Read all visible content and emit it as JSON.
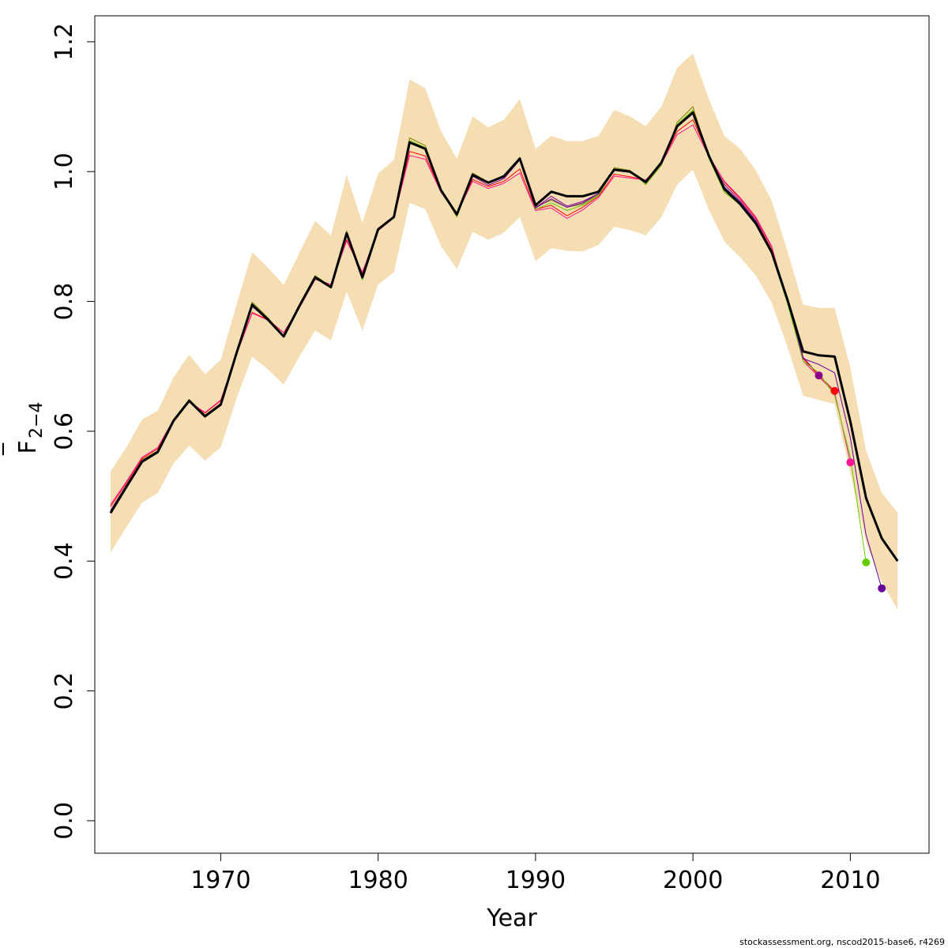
{
  "chart_data": {
    "type": "line",
    "xlabel": "Year",
    "ylabel_main": "F",
    "ylabel_sub": "2−4",
    "footer": "stockassessment.org, nscod2015-base6, r4269",
    "xlim": [
      1962,
      2015
    ],
    "ylim": [
      -0.05,
      1.24
    ],
    "x_ticks": [
      1970,
      1980,
      1990,
      2000,
      2010
    ],
    "x_tick_labels": [
      "1970",
      "1980",
      "1990",
      "2000",
      "2010"
    ],
    "y_ticks": [
      0.0,
      0.2,
      0.4,
      0.6,
      0.8,
      1.0,
      1.2
    ],
    "y_tick_labels": [
      "0.0",
      "0.2",
      "0.4",
      "0.6",
      "0.8",
      "1.0",
      "1.2"
    ],
    "band_color": "#f5deb3",
    "x": [
      1963,
      1964,
      1965,
      1966,
      1967,
      1968,
      1969,
      1970,
      1971,
      1972,
      1973,
      1974,
      1975,
      1976,
      1977,
      1978,
      1979,
      1980,
      1981,
      1982,
      1983,
      1984,
      1985,
      1986,
      1987,
      1988,
      1989,
      1990,
      1991,
      1992,
      1993,
      1994,
      1995,
      1996,
      1997,
      1998,
      1999,
      2000,
      2001,
      2002,
      2003,
      2004,
      2005,
      2006,
      2007,
      2008,
      2009,
      2010,
      2011,
      2012,
      2013
    ],
    "band_upper": [
      0.538,
      0.575,
      0.618,
      0.632,
      0.683,
      0.718,
      0.688,
      0.71,
      0.795,
      0.876,
      0.852,
      0.825,
      0.875,
      0.924,
      0.902,
      0.995,
      0.921,
      0.997,
      1.018,
      1.142,
      1.128,
      1.062,
      1.02,
      1.085,
      1.068,
      1.08,
      1.112,
      1.035,
      1.055,
      1.047,
      1.047,
      1.055,
      1.095,
      1.085,
      1.07,
      1.1,
      1.16,
      1.182,
      1.112,
      1.055,
      1.035,
      1.002,
      0.955,
      0.878,
      0.795,
      0.79,
      0.79,
      0.698,
      0.57,
      0.505,
      0.475
    ],
    "band_lower": [
      0.413,
      0.452,
      0.49,
      0.505,
      0.55,
      0.578,
      0.555,
      0.575,
      0.65,
      0.715,
      0.695,
      0.672,
      0.715,
      0.755,
      0.74,
      0.815,
      0.755,
      0.826,
      0.845,
      0.952,
      0.942,
      0.885,
      0.85,
      0.907,
      0.895,
      0.906,
      0.93,
      0.862,
      0.882,
      0.878,
      0.877,
      0.887,
      0.915,
      0.91,
      0.902,
      0.93,
      0.98,
      1.003,
      0.942,
      0.892,
      0.868,
      0.84,
      0.798,
      0.73,
      0.655,
      0.648,
      0.642,
      0.535,
      0.428,
      0.368,
      0.325
    ],
    "series": [
      {
        "color": "#000000",
        "width": 3,
        "endpoint": false,
        "x": [
          1963,
          1964,
          1965,
          1966,
          1967,
          1968,
          1969,
          1970,
          1971,
          1972,
          1973,
          1974,
          1975,
          1976,
          1977,
          1978,
          1979,
          1980,
          1981,
          1982,
          1983,
          1984,
          1985,
          1986,
          1987,
          1988,
          1989,
          1990,
          1991,
          1992,
          1993,
          1994,
          1995,
          1996,
          1997,
          1998,
          1999,
          2000,
          2001,
          2002,
          2003,
          2004,
          2005,
          2006,
          2007,
          2008,
          2009,
          2010,
          2011,
          2012,
          2013
        ],
        "y": [
          0.474,
          0.514,
          0.553,
          0.568,
          0.616,
          0.647,
          0.623,
          0.641,
          0.72,
          0.795,
          0.772,
          0.746,
          0.793,
          0.837,
          0.822,
          0.905,
          0.837,
          0.911,
          0.93,
          1.045,
          1.035,
          0.971,
          0.934,
          0.995,
          0.983,
          0.993,
          1.02,
          0.948,
          0.969,
          0.962,
          0.962,
          0.969,
          1.003,
          1.0,
          0.984,
          1.014,
          1.07,
          1.091,
          1.025,
          0.973,
          0.95,
          0.92,
          0.876,
          0.803,
          0.723,
          0.717,
          0.715,
          0.615,
          0.497,
          0.435,
          0.4
        ]
      },
      {
        "color": "#808000",
        "width": 1,
        "endpoint": false,
        "x": [
          1963,
          1964,
          1965,
          1966,
          1967,
          1968,
          1969,
          1970,
          1971,
          1972,
          1973,
          1974,
          1975,
          1976,
          1977,
          1978,
          1979,
          1980,
          1981,
          1982,
          1983,
          1984,
          1985,
          1986,
          1987,
          1988,
          1989,
          1990,
          1991,
          1992,
          1993,
          1994,
          1995,
          1996,
          1997,
          1998,
          1999,
          2000,
          2001,
          2002,
          2003,
          2004,
          2005,
          2006,
          2007
        ],
        "y": [
          0.476,
          0.516,
          0.556,
          0.57,
          0.618,
          0.649,
          0.625,
          0.643,
          0.722,
          0.799,
          0.775,
          0.747,
          0.795,
          0.84,
          0.823,
          0.909,
          0.834,
          0.912,
          0.931,
          1.052,
          1.04,
          0.972,
          0.93,
          0.998,
          0.984,
          0.994,
          1.022,
          0.946,
          0.956,
          0.945,
          0.95,
          0.965,
          1.006,
          1.002,
          0.98,
          1.01,
          1.076,
          1.1,
          1.022,
          0.968,
          0.951,
          0.921,
          0.874,
          0.8,
          0.72
        ]
      },
      {
        "color": "#8b008b",
        "width": 1,
        "endpoint": true,
        "x": [
          1963,
          1964,
          1965,
          1966,
          1967,
          1968,
          1969,
          1970,
          1971,
          1972,
          1973,
          1974,
          1975,
          1976,
          1977,
          1978,
          1979,
          1980,
          1981,
          1982,
          1983,
          1984,
          1985,
          1986,
          1987,
          1988,
          1989,
          1990,
          1991,
          1992,
          1993,
          1994,
          1995,
          1996,
          1997,
          1998,
          1999,
          2000,
          2001,
          2002,
          2003,
          2004,
          2005,
          2006,
          2007,
          2008
        ],
        "y": [
          0.478,
          0.517,
          0.555,
          0.569,
          0.617,
          0.647,
          0.624,
          0.643,
          0.72,
          0.792,
          0.772,
          0.748,
          0.793,
          0.836,
          0.823,
          0.904,
          0.837,
          0.911,
          0.93,
          1.046,
          1.035,
          0.97,
          0.935,
          0.993,
          0.979,
          0.989,
          1.018,
          0.944,
          0.962,
          0.947,
          0.954,
          0.966,
          1.002,
          0.999,
          0.985,
          1.014,
          1.069,
          1.09,
          1.023,
          0.98,
          0.955,
          0.925,
          0.879,
          0.8,
          0.714,
          0.686
        ]
      },
      {
        "color": "#ff0000",
        "width": 1,
        "endpoint": true,
        "x": [
          1963,
          1964,
          1965,
          1966,
          1967,
          1968,
          1969,
          1970,
          1971,
          1972,
          1973,
          1974,
          1975,
          1976,
          1977,
          1978,
          1979,
          1980,
          1981,
          1982,
          1983,
          1984,
          1985,
          1986,
          1987,
          1988,
          1989,
          1990,
          1991,
          1992,
          1993,
          1994,
          1995,
          1996,
          1997,
          1998,
          1999,
          2000,
          2001,
          2002,
          2003,
          2004,
          2005,
          2006,
          2007,
          2008,
          2009
        ],
        "y": [
          0.484,
          0.52,
          0.558,
          0.573,
          0.617,
          0.645,
          0.628,
          0.647,
          0.718,
          0.783,
          0.772,
          0.752,
          0.791,
          0.835,
          0.826,
          0.895,
          0.844,
          0.91,
          0.93,
          1.031,
          1.024,
          0.97,
          0.935,
          0.988,
          0.977,
          0.985,
          1.004,
          0.942,
          0.948,
          0.932,
          0.945,
          0.962,
          0.996,
          0.992,
          0.987,
          1.013,
          1.062,
          1.08,
          1.025,
          0.984,
          0.958,
          0.928,
          0.883,
          0.8,
          0.712,
          0.686,
          0.662
        ]
      },
      {
        "color": "#ff1493",
        "width": 1,
        "endpoint": true,
        "x": [
          1963,
          1964,
          1965,
          1966,
          1967,
          1968,
          1969,
          1970,
          1971,
          1972,
          1973,
          1974,
          1975,
          1976,
          1977,
          1978,
          1979,
          1980,
          1981,
          1982,
          1983,
          1984,
          1985,
          1986,
          1987,
          1988,
          1989,
          1990,
          1991,
          1992,
          1993,
          1994,
          1995,
          1996,
          1997,
          1998,
          1999,
          2000,
          2001,
          2002,
          2003,
          2004,
          2005,
          2006,
          2007,
          2008,
          2009,
          2010
        ],
        "y": [
          0.487,
          0.522,
          0.56,
          0.575,
          0.618,
          0.646,
          0.629,
          0.648,
          0.718,
          0.782,
          0.771,
          0.752,
          0.79,
          0.834,
          0.826,
          0.893,
          0.845,
          0.909,
          0.929,
          1.025,
          1.019,
          0.968,
          0.935,
          0.985,
          0.974,
          0.982,
          0.998,
          0.94,
          0.944,
          0.928,
          0.941,
          0.96,
          0.993,
          0.99,
          0.987,
          1.012,
          1.057,
          1.072,
          1.024,
          0.985,
          0.96,
          0.93,
          0.885,
          0.8,
          0.708,
          0.684,
          0.66,
          0.552
        ]
      },
      {
        "color": "#66cc00",
        "width": 1,
        "endpoint": true,
        "x": [
          1963,
          1964,
          1965,
          1966,
          1967,
          1968,
          1969,
          1970,
          1971,
          1972,
          1973,
          1974,
          1975,
          1976,
          1977,
          1978,
          1979,
          1980,
          1981,
          1982,
          1983,
          1984,
          1985,
          1986,
          1987,
          1988,
          1989,
          1990,
          1991,
          1992,
          1993,
          1994,
          1995,
          1996,
          1997,
          1998,
          1999,
          2000,
          2001,
          2002,
          2003,
          2004,
          2005,
          2006,
          2007,
          2008,
          2009,
          2010,
          2011
        ],
        "y": [
          0.475,
          0.515,
          0.554,
          0.569,
          0.617,
          0.648,
          0.624,
          0.642,
          0.721,
          0.797,
          0.773,
          0.745,
          0.794,
          0.838,
          0.822,
          0.907,
          0.833,
          0.911,
          0.93,
          1.048,
          1.037,
          0.971,
          0.931,
          0.996,
          0.982,
          0.992,
          1.02,
          0.942,
          0.952,
          0.94,
          0.948,
          0.963,
          1.004,
          1.001,
          0.981,
          1.011,
          1.073,
          1.095,
          1.021,
          0.968,
          0.949,
          0.92,
          0.873,
          0.797,
          0.708,
          0.69,
          0.655,
          0.56,
          0.398
        ]
      },
      {
        "color": "#660099",
        "width": 1,
        "endpoint": true,
        "x": [
          1963,
          1964,
          1965,
          1966,
          1967,
          1968,
          1969,
          1970,
          1971,
          1972,
          1973,
          1974,
          1975,
          1976,
          1977,
          1978,
          1979,
          1980,
          1981,
          1982,
          1983,
          1984,
          1985,
          1986,
          1987,
          1988,
          1989,
          1990,
          1991,
          1992,
          1993,
          1994,
          1995,
          1996,
          1997,
          1998,
          1999,
          2000,
          2001,
          2002,
          2003,
          2004,
          2005,
          2006,
          2007,
          2008,
          2009,
          2010,
          2011,
          2012
        ],
        "y": [
          0.475,
          0.515,
          0.554,
          0.569,
          0.617,
          0.647,
          0.624,
          0.642,
          0.721,
          0.794,
          0.772,
          0.746,
          0.793,
          0.837,
          0.822,
          0.905,
          0.836,
          0.911,
          0.93,
          1.045,
          1.035,
          0.971,
          0.934,
          0.994,
          0.982,
          0.991,
          1.018,
          0.944,
          0.958,
          0.945,
          0.952,
          0.966,
          1.003,
          1.0,
          0.984,
          1.013,
          1.069,
          1.089,
          1.024,
          0.976,
          0.953,
          0.923,
          0.877,
          0.803,
          0.712,
          0.703,
          0.69,
          0.59,
          0.44,
          0.358
        ]
      }
    ]
  }
}
